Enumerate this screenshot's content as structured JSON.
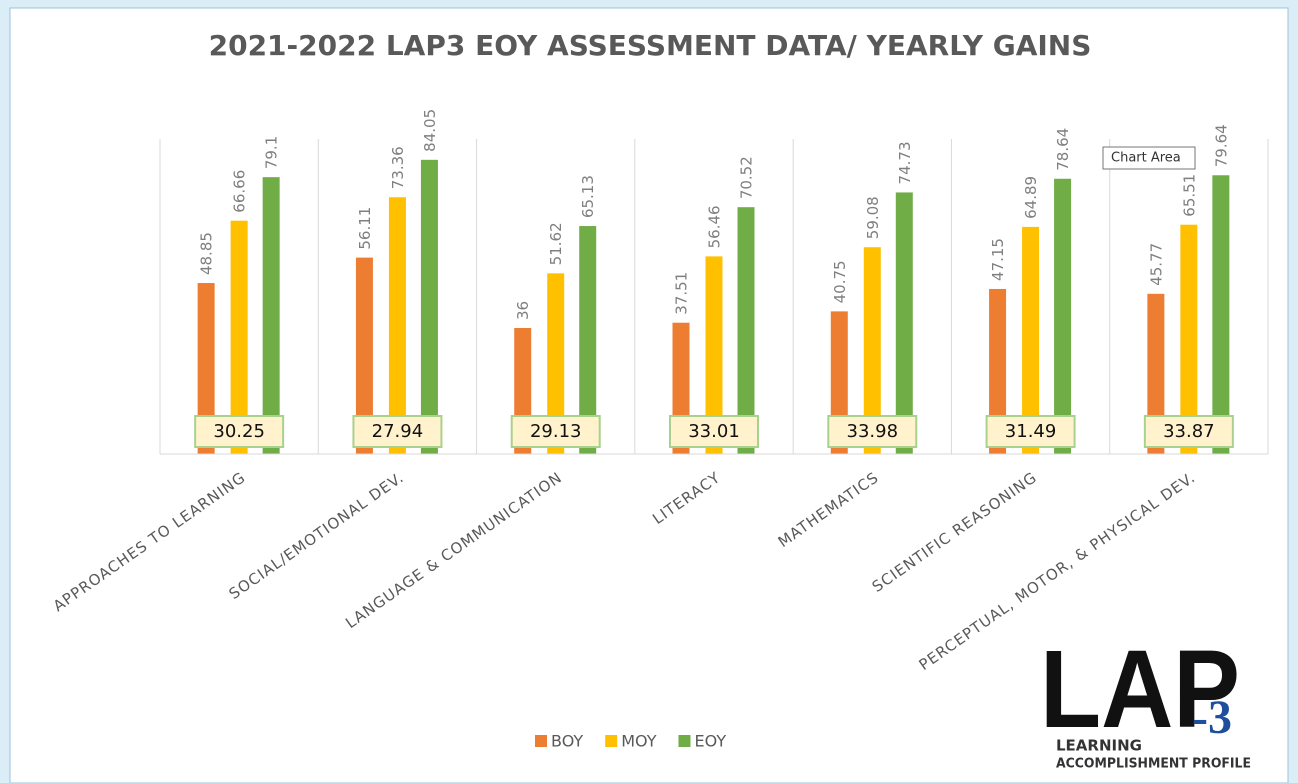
{
  "chart_data": {
    "type": "bar",
    "title": "2021-2022 LAP3 EOY ASSESSMENT DATA/ YEARLY GAINS",
    "categories": [
      "APPROACHES TO LEARNING",
      "SOCIAL/EMOTIONAL DEV.",
      "LANGUAGE & COMMUNICATION",
      "LITERACY",
      "MATHEMATICS",
      "SCIENTIFIC REASONING",
      "PERCEPTUAL, MOTOR, & PHYSICAL DEV."
    ],
    "series": [
      {
        "name": "BOY",
        "color": "#ed7d31",
        "values": [
          48.85,
          56.11,
          36,
          37.51,
          40.75,
          47.15,
          45.77
        ]
      },
      {
        "name": "MOY",
        "color": "#ffc000",
        "values": [
          66.66,
          73.36,
          51.62,
          56.46,
          59.08,
          64.89,
          65.51
        ]
      },
      {
        "name": "EOY",
        "color": "#70ad47",
        "values": [
          79.1,
          84.05,
          65.13,
          70.52,
          74.73,
          78.64,
          79.64
        ]
      }
    ],
    "gains": [
      30.25,
      27.94,
      29.13,
      33.01,
      33.98,
      31.49,
      33.87
    ],
    "ylim": [
      0,
      90
    ],
    "legend": "bottom",
    "tooltip": "Chart Area",
    "logo": {
      "main": "LAP",
      "number": "-3",
      "line1": "LEARNING",
      "line2": "ACCOMPLISHMENT PROFILE"
    }
  }
}
